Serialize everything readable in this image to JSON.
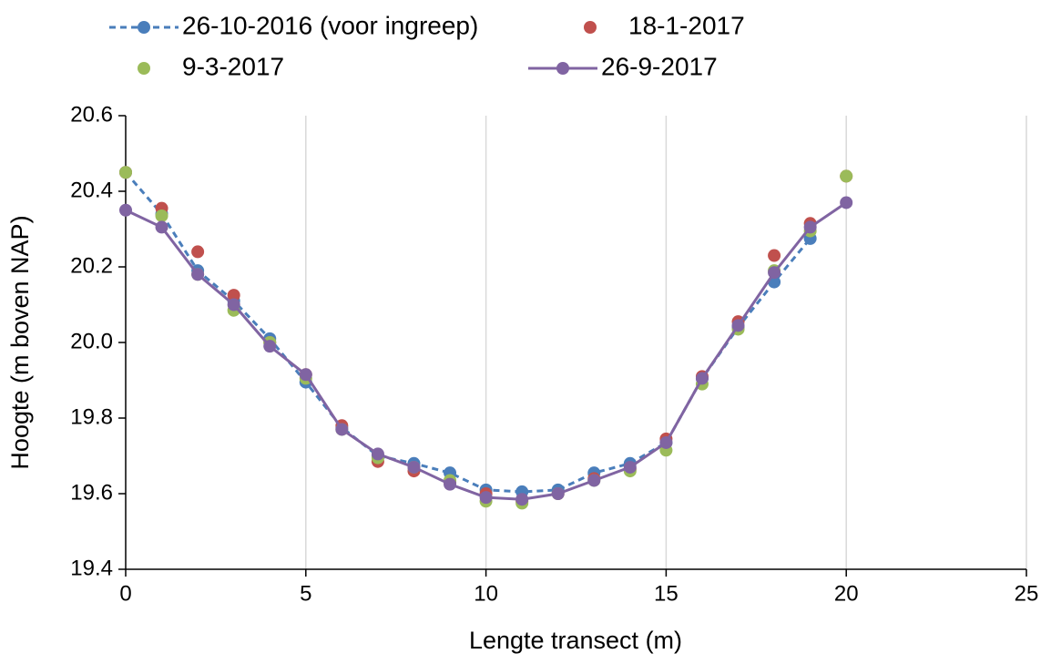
{
  "chart_data": {
    "type": "scatter",
    "xlabel": "Lengte transect (m)",
    "ylabel": "Hoogte (m boven NAP)",
    "xlim": [
      0,
      25
    ],
    "xticks": [
      0,
      5,
      10,
      15,
      20,
      25
    ],
    "ylim": [
      19.4,
      20.6
    ],
    "yticks": [
      19.4,
      19.6,
      19.8,
      {
        "value": 20,
        "label": "20.0"
      },
      20.2,
      20.4,
      20.6
    ],
    "grid": "x",
    "legend": "top",
    "series": [
      {
        "name": "26-10-2016 (voor ingreep)",
        "color": "#4a7ebb",
        "line": "dashed",
        "x": [
          0,
          1,
          2,
          3,
          4,
          5,
          6,
          7,
          8,
          9,
          10,
          11,
          12,
          13,
          14,
          15,
          16,
          17,
          18,
          19
        ],
        "values": [
          20.45,
          20.34,
          20.19,
          20.11,
          20.01,
          19.895,
          19.775,
          19.7,
          19.68,
          19.655,
          19.61,
          19.605,
          19.61,
          19.655,
          19.68,
          19.735,
          19.905,
          20.04,
          20.16,
          20.275
        ]
      },
      {
        "name": "18-1-2017",
        "color": "#c0504d",
        "line": null,
        "x": [
          0,
          1,
          2,
          3,
          4,
          5,
          6,
          7,
          8,
          9,
          10,
          11,
          12,
          13,
          14,
          15,
          16,
          17,
          18,
          19,
          20
        ],
        "values": [
          20.45,
          20.355,
          20.24,
          20.125,
          20.0,
          19.915,
          19.78,
          19.685,
          19.66,
          19.63,
          19.6,
          19.58,
          19.6,
          19.64,
          19.665,
          19.745,
          19.91,
          20.055,
          20.23,
          20.315,
          20.44
        ]
      },
      {
        "name": "9-3-2017",
        "color": "#9bbb59",
        "line": null,
        "x": [
          0,
          1,
          2,
          3,
          4,
          5,
          6,
          7,
          8,
          9,
          10,
          11,
          12,
          13,
          14,
          15,
          16,
          17,
          18,
          19,
          20
        ],
        "values": [
          20.45,
          20.335,
          20.18,
          20.085,
          20.0,
          19.905,
          19.77,
          19.695,
          19.67,
          19.635,
          19.58,
          19.575,
          19.6,
          19.635,
          19.66,
          19.715,
          19.89,
          20.035,
          20.19,
          20.295,
          20.44
        ]
      },
      {
        "name": "26-9-2017",
        "color": "#8064a2",
        "line": "solid",
        "x": [
          0,
          1,
          2,
          3,
          4,
          5,
          6,
          7,
          8,
          9,
          10,
          11,
          12,
          13,
          14,
          15,
          16,
          17,
          18,
          19,
          20
        ],
        "values": [
          20.35,
          20.305,
          20.18,
          20.1,
          19.99,
          19.915,
          19.77,
          19.705,
          19.67,
          19.625,
          19.59,
          19.585,
          19.6,
          19.635,
          19.67,
          19.735,
          19.905,
          20.045,
          20.185,
          20.305,
          20.37
        ]
      }
    ]
  }
}
